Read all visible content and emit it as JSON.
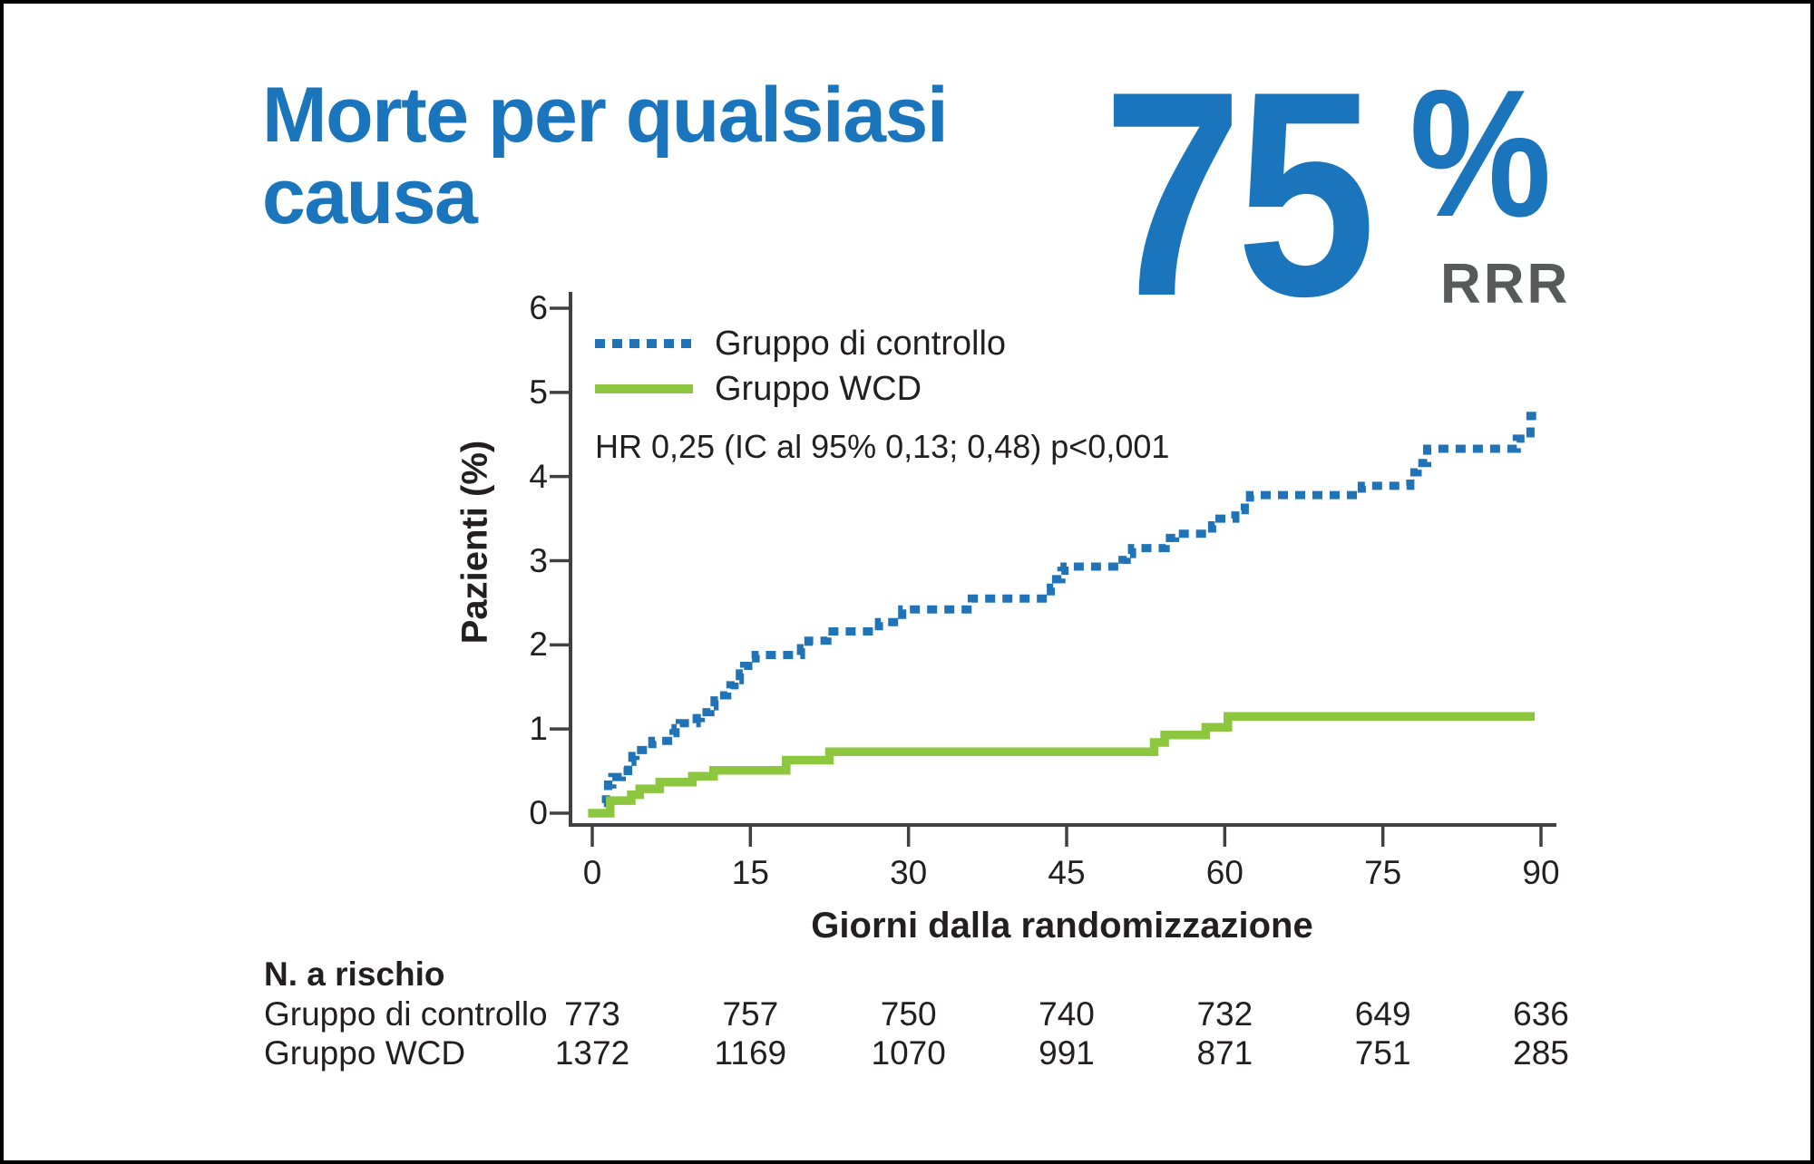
{
  "header": {
    "title": "Morte per qualsiasi causa",
    "stat_value": "75",
    "stat_unit": "%",
    "stat_label": "RRR",
    "accent_color": "#1b75bc",
    "stat_label_color": "#58595b"
  },
  "chart_data": {
    "type": "line",
    "title": "Morte per qualsiasi causa",
    "xlabel": "Giorni dalla randomizzazione",
    "ylabel": "Pazienti (%)",
    "xlim": [
      0,
      90
    ],
    "ylim": [
      0,
      6
    ],
    "xticks": [
      0,
      15,
      30,
      45,
      60,
      75,
      90
    ],
    "yticks": [
      0,
      1,
      2,
      3,
      4,
      5,
      6
    ],
    "grid": false,
    "legend_position": "top-left-inside",
    "annotation": "HR 0,25 (IC al 95% 0,13; 0,48) p<0,001",
    "axis_color": "#414042",
    "series": [
      {
        "name": "Gruppo di controllo",
        "color": "#2173b7",
        "line_style": "dashed",
        "interpolation": "step-after",
        "points": [
          [
            1.1,
            0.12
          ],
          [
            1.3,
            0.25
          ],
          [
            1.5,
            0.34
          ],
          [
            1.9,
            0.43
          ],
          [
            2.8,
            0.5
          ],
          [
            3.4,
            0.61
          ],
          [
            3.8,
            0.68
          ],
          [
            4.1,
            0.75
          ],
          [
            5.7,
            0.86
          ],
          [
            7.7,
            0.95
          ],
          [
            7.9,
            1.01
          ],
          [
            8.3,
            1.07
          ],
          [
            9.9,
            1.13
          ],
          [
            10.3,
            1.2
          ],
          [
            11.2,
            1.27
          ],
          [
            11.6,
            1.34
          ],
          [
            12,
            1.4
          ],
          [
            12.8,
            1.46
          ],
          [
            13.1,
            1.52
          ],
          [
            13.5,
            1.58
          ],
          [
            14,
            1.66
          ],
          [
            14.4,
            1.75
          ],
          [
            14.8,
            1.84
          ],
          [
            15.5,
            1.88
          ],
          [
            19.8,
            1.96
          ],
          [
            20.5,
            2.05
          ],
          [
            22.3,
            2.16
          ],
          [
            27.2,
            2.27
          ],
          [
            29.4,
            2.42
          ],
          [
            35.6,
            2.5
          ],
          [
            36,
            2.55
          ],
          [
            43.5,
            2.68
          ],
          [
            44,
            2.78
          ],
          [
            44.5,
            2.88
          ],
          [
            44.8,
            2.93
          ],
          [
            50.3,
            3.01
          ],
          [
            50.7,
            3.08
          ],
          [
            51.2,
            3.15
          ],
          [
            54.4,
            3.21
          ],
          [
            54.8,
            3.27
          ],
          [
            55.3,
            3.32
          ],
          [
            58.8,
            3.42
          ],
          [
            59.5,
            3.5
          ],
          [
            61,
            3.6
          ],
          [
            61.9,
            3.7
          ],
          [
            62.4,
            3.78
          ],
          [
            73,
            3.89
          ],
          [
            77.6,
            4.05
          ],
          [
            78.3,
            4.16
          ],
          [
            79.2,
            4.33
          ],
          [
            87.7,
            4.45
          ],
          [
            89,
            4.72
          ],
          [
            89.6,
            4.72
          ]
        ]
      },
      {
        "name": "Gruppo WCD",
        "color": "#8dc63f",
        "line_style": "solid",
        "interpolation": "step-after",
        "points": [
          [
            -0.4,
            0
          ],
          [
            1.7,
            0.15
          ],
          [
            3.7,
            0.22
          ],
          [
            4.5,
            0.29
          ],
          [
            6.4,
            0.37
          ],
          [
            9.5,
            0.44
          ],
          [
            11.5,
            0.51
          ],
          [
            18.4,
            0.63
          ],
          [
            22.5,
            0.73
          ],
          [
            53.3,
            0.84
          ],
          [
            54.3,
            0.93
          ],
          [
            58.2,
            1.02
          ],
          [
            60.3,
            1.15
          ],
          [
            89.4,
            1.15
          ]
        ]
      }
    ]
  },
  "risk_table": {
    "title": "N. a rischio",
    "columns_days": [
      0,
      15,
      30,
      45,
      60,
      75,
      90
    ],
    "rows": [
      {
        "label": "Gruppo di controllo",
        "values": [
          "773",
          "757",
          "750",
          "740",
          "732",
          "649",
          "636"
        ]
      },
      {
        "label": "Gruppo WCD",
        "values": [
          "1372",
          "1169",
          "1070",
          "991",
          "871",
          "751",
          "285"
        ]
      }
    ]
  }
}
